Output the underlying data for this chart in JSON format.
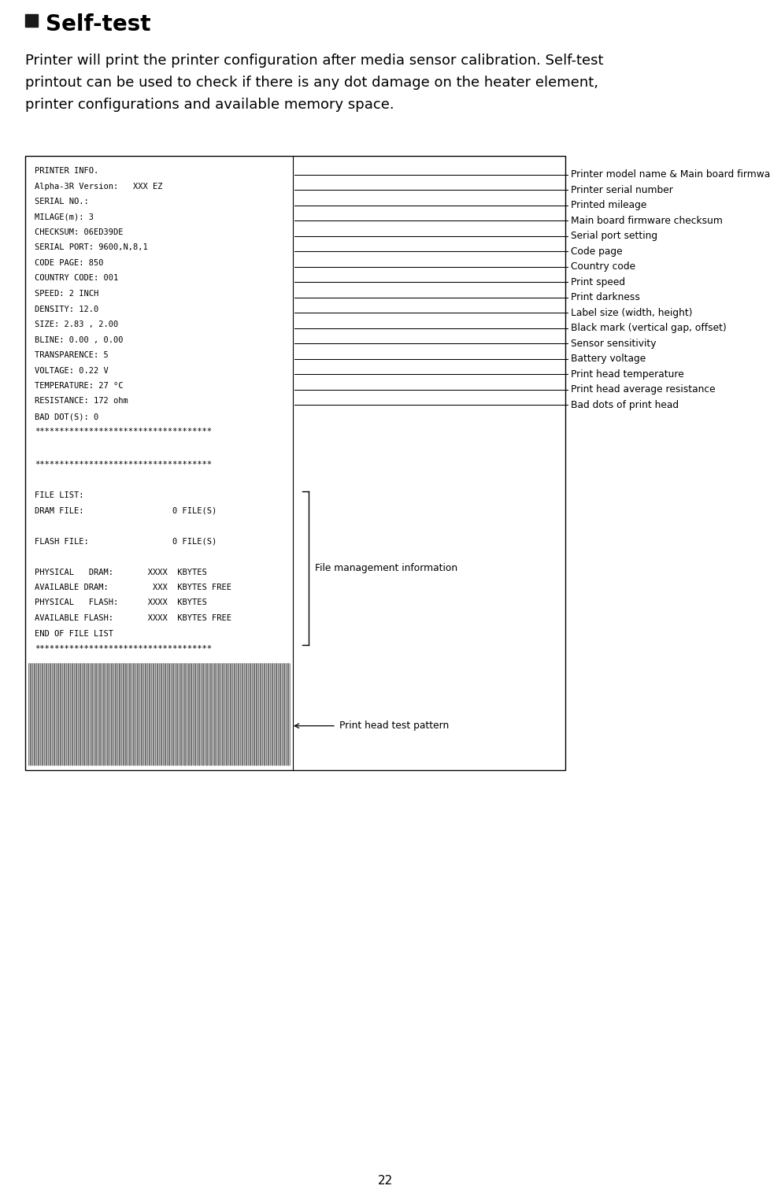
{
  "title": "Self-test",
  "description_lines": [
    "Printer will print the printer configuration after media sensor calibration. Self-test",
    "printout can be used to check if there is any dot damage on the heater element,",
    "printer configurations and available memory space."
  ],
  "page_number": "22",
  "printer_info_lines": [
    "PRINTER INFO.",
    "Alpha-3R Version:   XXX EZ",
    "SERIAL NO.:",
    "MILAGE(m): 3",
    "CHECKSUM: 06ED39DE",
    "SERIAL PORT: 9600,N,8,1",
    "CODE PAGE: 850",
    "COUNTRY CODE: 001",
    "SPEED: 2 INCH",
    "DENSITY: 12.0",
    "SIZE: 2.83 , 2.00",
    "BLINE: 0.00 , 0.00",
    "TRANSPARENCE: 5",
    "VOLTAGE: 0.22 V",
    "TEMPERATURE: 27 °C",
    "RESISTANCE: 172 ohm",
    "BAD DOT(S): 0",
    "************************************"
  ],
  "file_info_lines": [
    "************************************",
    "",
    "FILE LIST:",
    "DRAM FILE:                  0 FILE(S)",
    "",
    "FLASH FILE:                 0 FILE(S)",
    "",
    "PHYSICAL   DRAM:       XXXX  KBYTES",
    "AVAILABLE DRAM:         XXX  KBYTES FREE",
    "PHYSICAL   FLASH:      XXXX  KBYTES",
    "AVAILABLE FLASH:       XXXX  KBYTES FREE",
    "END OF FILE LIST",
    "************************************"
  ],
  "right_labels": [
    "Printer model name & Main board firmware version",
    "Printer serial number",
    "Printed mileage",
    "Main board firmware checksum",
    "Serial port setting",
    "Code page",
    "Country code",
    "Print speed",
    "Print darkness",
    "Label size (width, height)",
    "Black mark (vertical gap, offset)",
    "Sensor sensitivity",
    "Battery voltage",
    "Print head temperature",
    "Print head average resistance",
    "Bad dots of print head"
  ],
  "file_label": "File management information",
  "pattern_label": "Print head test pattern",
  "bg_color": "#ffffff",
  "box_border": "#000000",
  "mono_font_size": 7.5,
  "label_font_size": 8.8,
  "title_fontsize": 20,
  "desc_fontsize": 13,
  "bullet_color": "#1a1a1a"
}
